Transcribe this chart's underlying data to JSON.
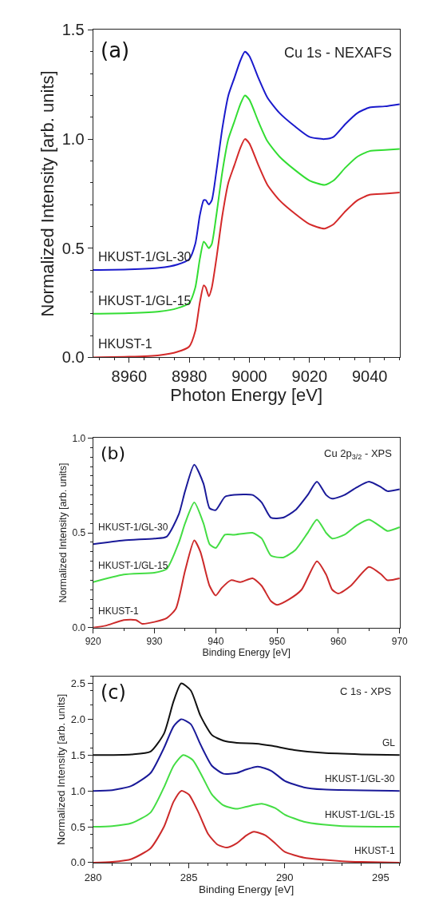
{
  "chart_data": [
    {
      "type": "line",
      "xlabel": "Photon Energy [eV]",
      "ylabel": "Normalized Intensity [arb. units]",
      "annotations": [
        "(a)",
        "Cu 1s - NEXAFS"
      ],
      "xlim": [
        8948,
        9050
      ],
      "xticks": [
        8960,
        8980,
        9000,
        9020,
        9040
      ],
      "ylim": [
        0,
        1.5
      ],
      "yticks": [
        {
          "value": 0,
          "label": "0.0"
        },
        {
          "value": 0.5,
          "label": "0.5"
        },
        {
          "value": 1,
          "label": "1.0"
        },
        {
          "value": 1.5,
          "label": "1.5"
        }
      ],
      "grid": false,
      "legend": false,
      "x": [
        8948,
        8960,
        8970,
        8976,
        8980,
        8982,
        8983.5,
        8984.8,
        8985.5,
        8986.5,
        8987.5,
        8989,
        8991,
        8993,
        8995,
        8997,
        8998.5,
        9000,
        9003,
        9006,
        9010,
        9015,
        9020,
        9025,
        9028,
        9032,
        9036,
        9040,
        9045,
        9050
      ],
      "series": [
        {
          "name": "HKUST-1",
          "color": "#d42a2a",
          "values": [
            0,
            0.003,
            0.01,
            0.025,
            0.05,
            0.12,
            0.25,
            0.33,
            0.32,
            0.28,
            0.32,
            0.45,
            0.65,
            0.8,
            0.88,
            0.96,
            1.0,
            0.98,
            0.88,
            0.79,
            0.72,
            0.66,
            0.61,
            0.59,
            0.61,
            0.67,
            0.72,
            0.745,
            0.75,
            0.755
          ]
        },
        {
          "name": "HKUST-1/GL-15",
          "color": "#33dd33",
          "values": [
            0.2,
            0.203,
            0.21,
            0.225,
            0.25,
            0.32,
            0.45,
            0.53,
            0.52,
            0.5,
            0.52,
            0.65,
            0.85,
            1.0,
            1.08,
            1.16,
            1.2,
            1.18,
            1.08,
            0.99,
            0.92,
            0.86,
            0.81,
            0.79,
            0.81,
            0.87,
            0.92,
            0.945,
            0.95,
            0.955
          ]
        },
        {
          "name": "HKUST-1/GL-30",
          "color": "#1a1acc",
          "values": [
            0.4,
            0.403,
            0.41,
            0.425,
            0.45,
            0.52,
            0.65,
            0.72,
            0.72,
            0.7,
            0.72,
            0.85,
            1.05,
            1.2,
            1.28,
            1.36,
            1.4,
            1.38,
            1.28,
            1.19,
            1.12,
            1.06,
            1.01,
            1.0,
            1.01,
            1.07,
            1.12,
            1.145,
            1.15,
            1.16
          ]
        }
      ]
    },
    {
      "type": "line",
      "xlabel": "Binding Energy [eV]",
      "ylabel": "Normalized Intensity [arb. units]",
      "annotations": [
        "(b)",
        "Cu 2p$_{3/2}$ - XPS"
      ],
      "xlim": [
        920,
        970
      ],
      "xticks": [
        920,
        930,
        940,
        950,
        960,
        970
      ],
      "ylim": [
        0,
        1
      ],
      "yticks": [
        {
          "value": 0,
          "label": "0.0"
        },
        {
          "value": 0.5,
          "label": "0.5"
        },
        {
          "value": 1,
          "label": "1.0"
        }
      ],
      "grid": false,
      "legend": false,
      "series": [
        {
          "name": "HKUST-1",
          "color": "#cc2a2a",
          "x": [
            920,
            922,
            925,
            927,
            928,
            930,
            932,
            933.5,
            935,
            936.5,
            937.5,
            939,
            940,
            941,
            942.5,
            944,
            946,
            947.5,
            949,
            950,
            952,
            954,
            956.5,
            958,
            959,
            960,
            962,
            965,
            967,
            968,
            970
          ],
          "values": [
            0.0,
            0.01,
            0.04,
            0.04,
            0.02,
            0.03,
            0.05,
            0.1,
            0.3,
            0.46,
            0.4,
            0.22,
            0.17,
            0.21,
            0.25,
            0.24,
            0.26,
            0.22,
            0.14,
            0.12,
            0.15,
            0.2,
            0.35,
            0.28,
            0.2,
            0.18,
            0.22,
            0.32,
            0.28,
            0.25,
            0.26
          ]
        },
        {
          "name": "HKUST-1/GL-15",
          "color": "#44dd44",
          "x": [
            920,
            925,
            930,
            932,
            934,
            935,
            936.5,
            938,
            939,
            940,
            941.5,
            943,
            946,
            947.5,
            949,
            951,
            953,
            955,
            956.5,
            958,
            959,
            961,
            963,
            965,
            967,
            968,
            970
          ],
          "values": [
            0.24,
            0.28,
            0.29,
            0.31,
            0.45,
            0.55,
            0.66,
            0.55,
            0.44,
            0.42,
            0.49,
            0.49,
            0.5,
            0.47,
            0.38,
            0.37,
            0.41,
            0.5,
            0.57,
            0.5,
            0.47,
            0.49,
            0.54,
            0.57,
            0.53,
            0.51,
            0.53
          ]
        },
        {
          "name": "HKUST-1/GL-30",
          "color": "#1a1a99",
          "x": [
            920,
            925,
            930,
            932,
            934,
            935,
            936.5,
            938,
            939,
            940,
            941.5,
            943,
            946,
            947.5,
            949,
            951,
            953,
            955,
            956.5,
            958,
            959,
            961,
            963,
            965,
            967,
            968,
            970
          ],
          "values": [
            0.44,
            0.46,
            0.47,
            0.48,
            0.6,
            0.72,
            0.86,
            0.76,
            0.63,
            0.62,
            0.69,
            0.7,
            0.7,
            0.66,
            0.58,
            0.58,
            0.62,
            0.7,
            0.77,
            0.7,
            0.68,
            0.7,
            0.74,
            0.77,
            0.74,
            0.72,
            0.73
          ]
        }
      ]
    },
    {
      "type": "line",
      "xlabel": "Binding Energy [eV]",
      "ylabel": "Normalized Intensity [arb. units]",
      "annotations": [
        "(c)",
        "C 1s - XPS"
      ],
      "xlim": [
        280,
        296
      ],
      "xticks": [
        280,
        285,
        290,
        295
      ],
      "ylim": [
        0,
        2.6
      ],
      "yticks": [
        {
          "value": 0,
          "label": "0.0"
        },
        {
          "value": 0.5,
          "label": "0.5"
        },
        {
          "value": 1,
          "label": "1.0"
        },
        {
          "value": 1.5,
          "label": "1.5"
        },
        {
          "value": 2,
          "label": "2.0"
        },
        {
          "value": 2.5,
          "label": "2.5"
        }
      ],
      "grid": false,
      "legend": false,
      "series": [
        {
          "name": "HKUST-1",
          "color": "#cc2a2a",
          "x": [
            280,
            281,
            282,
            283,
            283.7,
            284.2,
            284.6,
            285,
            285.5,
            286,
            286.5,
            287,
            287.5,
            288,
            288.4,
            289,
            289.5,
            290,
            291,
            292,
            293,
            294,
            296
          ],
          "values": [
            0,
            0.01,
            0.05,
            0.2,
            0.5,
            0.85,
            1.0,
            0.95,
            0.7,
            0.4,
            0.25,
            0.21,
            0.27,
            0.38,
            0.43,
            0.38,
            0.27,
            0.15,
            0.07,
            0.04,
            0.02,
            0.01,
            0.0
          ]
        },
        {
          "name": "HKUST-1/GL-15",
          "color": "#44dd44",
          "x": [
            280,
            281,
            282,
            283,
            283.7,
            284.2,
            284.7,
            285.2,
            285.7,
            286.2,
            286.8,
            287.5,
            288,
            288.8,
            289.5,
            290,
            291,
            292,
            293,
            296
          ],
          "values": [
            0.5,
            0.51,
            0.55,
            0.7,
            1.05,
            1.35,
            1.5,
            1.43,
            1.2,
            0.95,
            0.8,
            0.75,
            0.78,
            0.82,
            0.76,
            0.67,
            0.57,
            0.53,
            0.51,
            0.5
          ]
        },
        {
          "name": "HKUST-1/GL-30",
          "color": "#1a1a99",
          "x": [
            280,
            281,
            282,
            283,
            283.7,
            284.2,
            284.6,
            285.1,
            285.6,
            286.2,
            286.8,
            287.5,
            288,
            288.6,
            289.3,
            290,
            291,
            292,
            296
          ],
          "values": [
            1.0,
            1.01,
            1.07,
            1.25,
            1.6,
            1.9,
            2.0,
            1.93,
            1.65,
            1.35,
            1.24,
            1.25,
            1.3,
            1.34,
            1.28,
            1.14,
            1.05,
            1.02,
            1.0
          ]
        },
        {
          "name": "GL",
          "color": "#111111",
          "x": [
            280,
            282,
            283,
            283.7,
            284.2,
            284.6,
            285.1,
            285.6,
            286.2,
            286.8,
            287.5,
            288.5,
            289.3,
            290.5,
            292,
            294,
            296
          ],
          "values": [
            1.5,
            1.51,
            1.55,
            1.8,
            2.25,
            2.5,
            2.4,
            2.05,
            1.78,
            1.7,
            1.67,
            1.66,
            1.63,
            1.57,
            1.53,
            1.51,
            1.5
          ]
        }
      ]
    }
  ]
}
